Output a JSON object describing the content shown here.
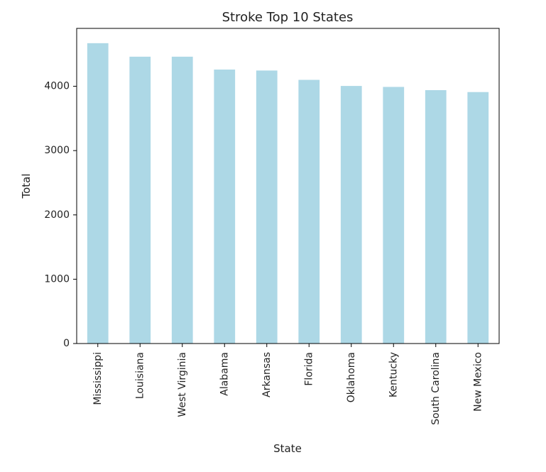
{
  "chart_data": {
    "type": "bar",
    "title": "Stroke Top 10 States",
    "xlabel": "State",
    "ylabel": "Total",
    "categories": [
      "Mississippi",
      "Louisiana",
      "West Virginia",
      "Alabama",
      "Arkansas",
      "Florida",
      "Oklahoma",
      "Kentucky",
      "South Carolina",
      "New Mexico"
    ],
    "values": [
      4670,
      4460,
      4460,
      4260,
      4245,
      4100,
      4005,
      3990,
      3940,
      3910
    ],
    "ylim": [
      0,
      4900
    ],
    "yticks": [
      0,
      1000,
      2000,
      3000,
      4000
    ],
    "grid": false,
    "bar_color": "#add8e6"
  }
}
